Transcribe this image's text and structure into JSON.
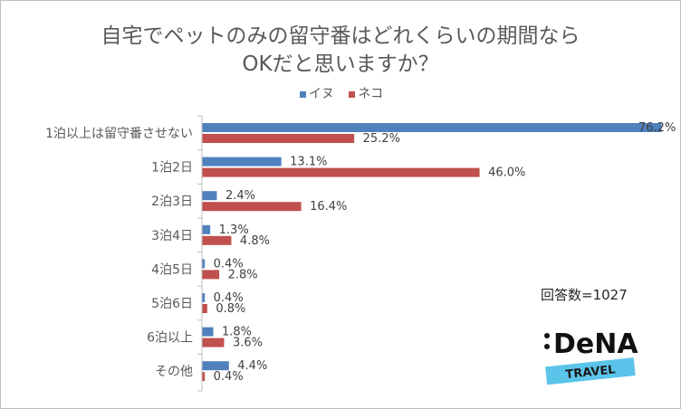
{
  "title_line1": "自宅でペットのみの留守番はどれくらいの期間なら",
  "title_line2": "OKだと思いますか？",
  "respondents": "回答数=1027",
  "logo": {
    "brand": "DeNA",
    "sub": "TRAVEL"
  },
  "colors": {
    "dog": "#4f81bd",
    "cat": "#c0504d"
  },
  "chart_data": {
    "type": "bar",
    "orientation": "horizontal",
    "title": "自宅でペットのみの留守番はどれくらいの期間ならOKだと思いますか？",
    "categories": [
      "1泊以上は留守番させない",
      "1泊2日",
      "2泊3日",
      "3泊4日",
      "4泊5日",
      "5泊6日",
      "6泊以上",
      "その他"
    ],
    "series": [
      {
        "name": "イヌ",
        "values": [
          76.2,
          13.1,
          2.4,
          1.3,
          0.4,
          0.4,
          1.8,
          4.4
        ],
        "labels": [
          "76.2%",
          "13.1%",
          "2.4%",
          "1.3%",
          "0.4%",
          "0.4%",
          "1.8%",
          "4.4%"
        ]
      },
      {
        "name": "ネコ",
        "values": [
          25.2,
          46.0,
          16.4,
          4.8,
          2.8,
          0.8,
          3.6,
          0.4
        ],
        "labels": [
          "25.2%",
          "46.0%",
          "16.4%",
          "4.8%",
          "2.8%",
          "0.8%",
          "3.6%",
          "0.4%"
        ]
      }
    ],
    "xlim": [
      0,
      76.2
    ],
    "legend": "top-center",
    "grid": false
  }
}
